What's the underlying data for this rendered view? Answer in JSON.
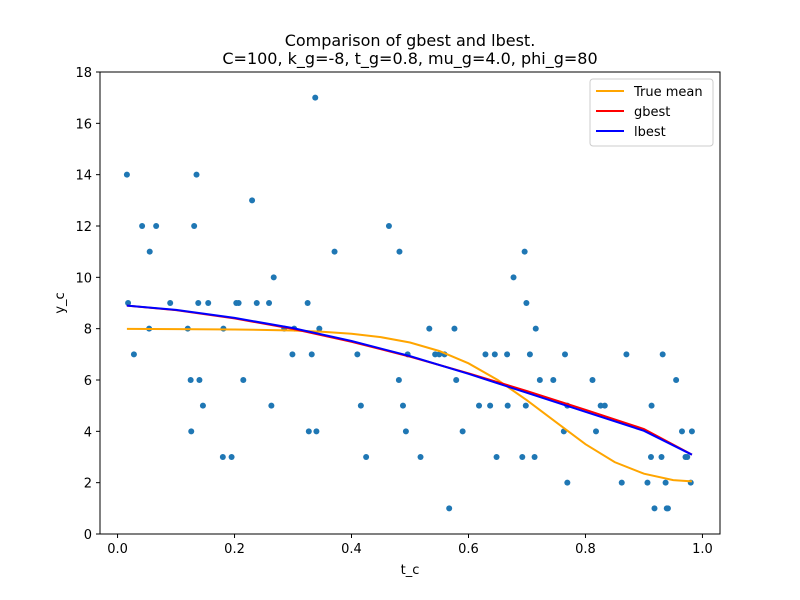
{
  "chart_data": {
    "type": "scatter",
    "title": "Comparison of gbest and lbest.",
    "subtitle": "C=100, k_g=-8, t_g=0.8, mu_g=4.0, phi_g=80",
    "xlabel": "t_c",
    "ylabel": "y_c",
    "xlim": [
      -0.03,
      1.03
    ],
    "ylim": [
      0,
      18
    ],
    "xticks": [
      0.0,
      0.2,
      0.4,
      0.6,
      0.8,
      1.0
    ],
    "xtick_labels": [
      "0.0",
      "0.2",
      "0.4",
      "0.6",
      "0.8",
      "1.0"
    ],
    "yticks": [
      0,
      2,
      4,
      6,
      8,
      10,
      12,
      14,
      16,
      18
    ],
    "ytick_labels": [
      "0",
      "2",
      "4",
      "6",
      "8",
      "10",
      "12",
      "14",
      "16",
      "18"
    ],
    "grid": false,
    "legend_position": "top-right",
    "points": {
      "color": "#1f77b4",
      "x": [
        0.016,
        0.018,
        0.028,
        0.042,
        0.054,
        0.055,
        0.066,
        0.09,
        0.12,
        0.125,
        0.126,
        0.131,
        0.135,
        0.138,
        0.14,
        0.146,
        0.155,
        0.18,
        0.181,
        0.195,
        0.203,
        0.207,
        0.215,
        0.23,
        0.238,
        0.259,
        0.263,
        0.267,
        0.285,
        0.299,
        0.302,
        0.325,
        0.327,
        0.332,
        0.338,
        0.34,
        0.345,
        0.371,
        0.41,
        0.416,
        0.425,
        0.464,
        0.481,
        0.482,
        0.488,
        0.493,
        0.496,
        0.518,
        0.533,
        0.543,
        0.55,
        0.559,
        0.567,
        0.576,
        0.579,
        0.59,
        0.618,
        0.629,
        0.637,
        0.645,
        0.648,
        0.666,
        0.667,
        0.677,
        0.692,
        0.696,
        0.698,
        0.699,
        0.705,
        0.713,
        0.715,
        0.722,
        0.745,
        0.763,
        0.765,
        0.769,
        0.769,
        0.812,
        0.818,
        0.826,
        0.833,
        0.862,
        0.87,
        0.906,
        0.912,
        0.913,
        0.918,
        0.93,
        0.932,
        0.937,
        0.939,
        0.941,
        0.955,
        0.965,
        0.971,
        0.974,
        0.98,
        0.982
      ],
      "y": [
        14,
        9,
        7,
        12,
        8,
        11,
        12,
        9,
        8,
        6,
        4,
        12,
        14,
        9,
        6,
        5,
        9,
        3,
        8,
        3,
        9,
        9,
        6,
        13,
        9,
        9,
        5,
        10,
        8,
        7,
        8,
        9,
        4,
        7,
        17,
        4,
        8,
        11,
        7,
        5,
        3,
        12,
        6,
        11,
        5,
        4,
        7,
        3,
        8,
        7,
        7,
        7,
        1,
        8,
        6,
        4,
        5,
        7,
        5,
        7,
        3,
        7,
        5,
        10,
        3,
        11,
        5,
        9,
        7,
        3,
        8,
        6,
        6,
        4,
        7,
        2,
        5,
        6,
        4,
        5,
        5,
        2,
        7,
        2,
        3,
        5,
        1,
        3,
        7,
        2,
        1,
        1,
        6,
        4,
        3,
        3,
        2,
        4
      ]
    },
    "series": [
      {
        "name": "True mean",
        "color": "#ffa500",
        "x": [
          0.016,
          0.1,
          0.2,
          0.3,
          0.35,
          0.4,
          0.45,
          0.5,
          0.55,
          0.6,
          0.65,
          0.7,
          0.75,
          0.8,
          0.85,
          0.9,
          0.95,
          0.982
        ],
        "y": [
          7.99,
          7.98,
          7.97,
          7.93,
          7.88,
          7.8,
          7.67,
          7.46,
          7.13,
          6.65,
          6.0,
          5.21,
          4.35,
          3.5,
          2.8,
          2.35,
          2.1,
          2.05
        ]
      },
      {
        "name": "gbest",
        "color": "#ff0000",
        "x": [
          0.016,
          0.1,
          0.2,
          0.3,
          0.4,
          0.5,
          0.6,
          0.7,
          0.8,
          0.9,
          0.982
        ],
        "y": [
          8.9,
          8.72,
          8.4,
          7.99,
          7.49,
          6.91,
          6.26,
          5.57,
          4.84,
          4.09,
          3.09
        ]
      },
      {
        "name": "lbest",
        "color": "#0000ff",
        "x": [
          0.016,
          0.1,
          0.2,
          0.3,
          0.4,
          0.5,
          0.6,
          0.7,
          0.8,
          0.9,
          0.982
        ],
        "y": [
          8.9,
          8.73,
          8.42,
          8.02,
          7.52,
          6.93,
          6.24,
          5.5,
          4.76,
          4.02,
          3.09
        ]
      }
    ]
  }
}
